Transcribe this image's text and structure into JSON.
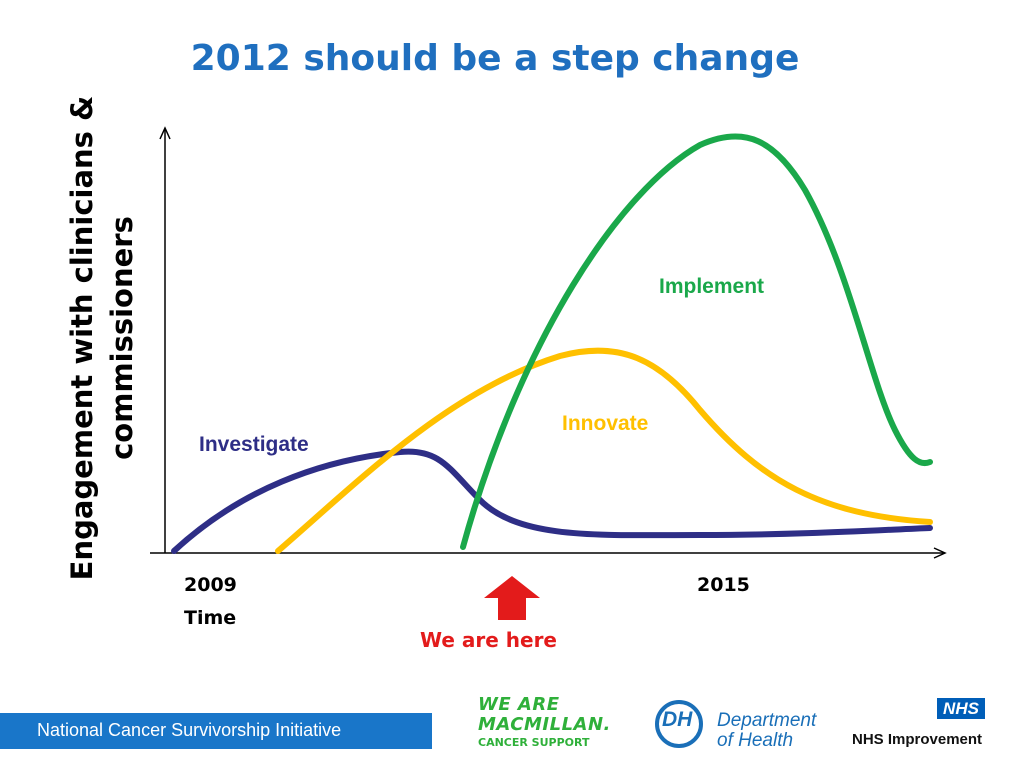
{
  "slide": {
    "title": "2012 should be a step change",
    "y_axis_label_line1": "Engagement with clinicians &",
    "y_axis_label_line2": "commissioners",
    "x_tick_start": "2009",
    "x_tick_end": "2015",
    "x_axis_label": "Time",
    "marker_text": "We are here",
    "footer_text": "National Cancer Survivorship Initiative"
  },
  "curves": [
    {
      "name": "Investigate",
      "label": "Investigate",
      "color": "#2e2e86"
    },
    {
      "name": "Innovate",
      "label": "Innovate",
      "color": "#ffc000"
    },
    {
      "name": "Implement",
      "label": "Implement",
      "color": "#1aa84a"
    }
  ],
  "colors": {
    "title": "#1f6fbf",
    "marker": "#e31b1b",
    "footer_bar": "#1976c9",
    "axis": "#000000"
  },
  "logos": {
    "macmillan_line1": "WE ARE",
    "macmillan_line2": "MACMILLAN.",
    "macmillan_line3": "CANCER SUPPORT",
    "dh_mark": "DH",
    "dh_line1": "Department",
    "dh_line2": "of Health",
    "nhs_mark": "NHS",
    "nhs_line": "NHS Improvement"
  }
}
